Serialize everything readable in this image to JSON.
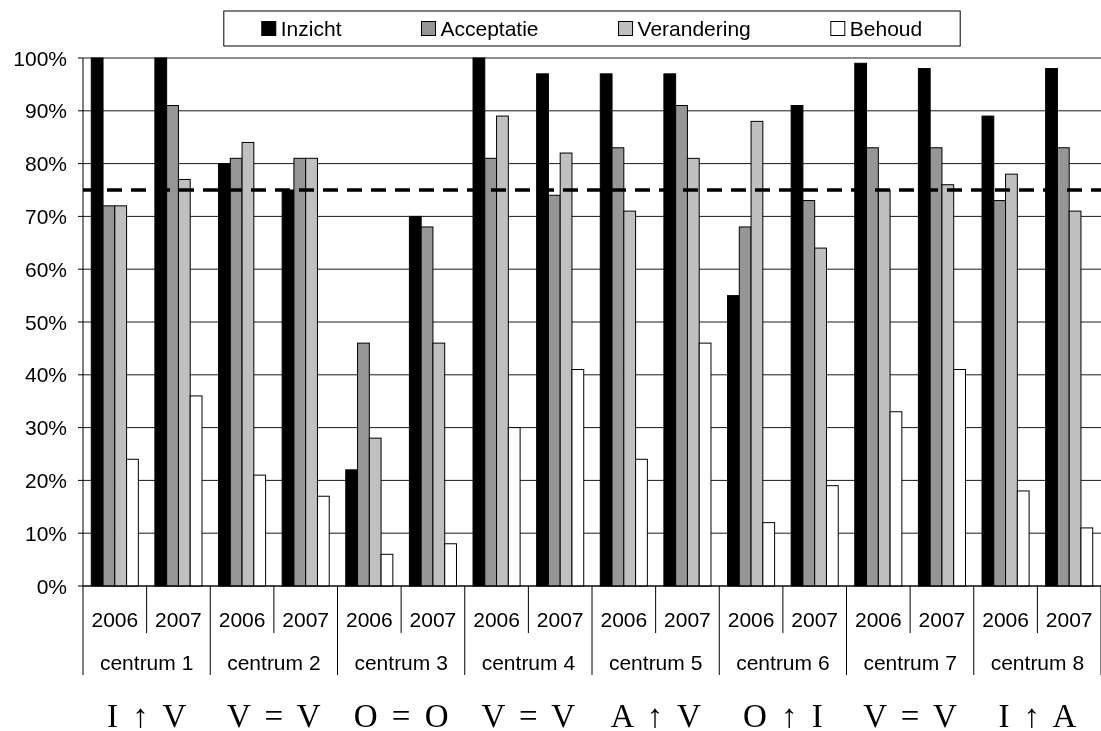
{
  "chart_data": {
    "type": "bar",
    "categories": [
      "2006",
      "2007",
      "2006",
      "2007",
      "2006",
      "2007",
      "2006",
      "2007",
      "2006",
      "2007",
      "2006",
      "2007",
      "2006",
      "2007",
      "2006",
      "2007"
    ],
    "series": [
      {
        "name": "Inzicht",
        "color": "#000000",
        "values": [
          100,
          100,
          80,
          75,
          22,
          70,
          100,
          97,
          97,
          97,
          55,
          91,
          99,
          98,
          89,
          98
        ]
      },
      {
        "name": "Acceptatie",
        "color": "#969696",
        "values": [
          72,
          91,
          81,
          81,
          46,
          68,
          81,
          74,
          83,
          91,
          68,
          73,
          83,
          83,
          73,
          83
        ]
      },
      {
        "name": "Verandering",
        "color": "#c0c0c0",
        "values": [
          72,
          77,
          84,
          81,
          28,
          46,
          89,
          82,
          71,
          81,
          88,
          64,
          75,
          76,
          78,
          71
        ]
      },
      {
        "name": "Behoud",
        "color": "#ffffff",
        "values": [
          24,
          36,
          21,
          17,
          6,
          8,
          30,
          41,
          24,
          46,
          12,
          19,
          33,
          41,
          18,
          11
        ]
      }
    ],
    "ylim": [
      0,
      100
    ],
    "yticks": [
      {
        "value": 0,
        "label": "0%"
      },
      {
        "value": 10,
        "label": "10%"
      },
      {
        "value": 20,
        "label": "20%"
      },
      {
        "value": 30,
        "label": "30%"
      },
      {
        "value": 40,
        "label": "40%"
      },
      {
        "value": 50,
        "label": "50%"
      },
      {
        "value": 60,
        "label": "60%"
      },
      {
        "value": 70,
        "label": "70%"
      },
      {
        "value": 80,
        "label": "80%"
      },
      {
        "value": 90,
        "label": "90%"
      },
      {
        "value": 100,
        "label": "100%"
      }
    ],
    "grid": "y",
    "legend": "top",
    "ref_lines": [
      {
        "axis": "y",
        "value": 75,
        "color": "#000000",
        "line_style": "dashed"
      }
    ],
    "annotations": [
      "centrum 1",
      "centrum 2",
      "centrum 3",
      "centrum 4",
      "centrum 5",
      "centrum 6",
      "centrum 7",
      "centrum 8",
      "I ↑ V",
      "V = V",
      "O = O",
      "V = V",
      "A ↑ V",
      "O ↑ I",
      "V = V",
      "I ↑ A"
    ]
  }
}
